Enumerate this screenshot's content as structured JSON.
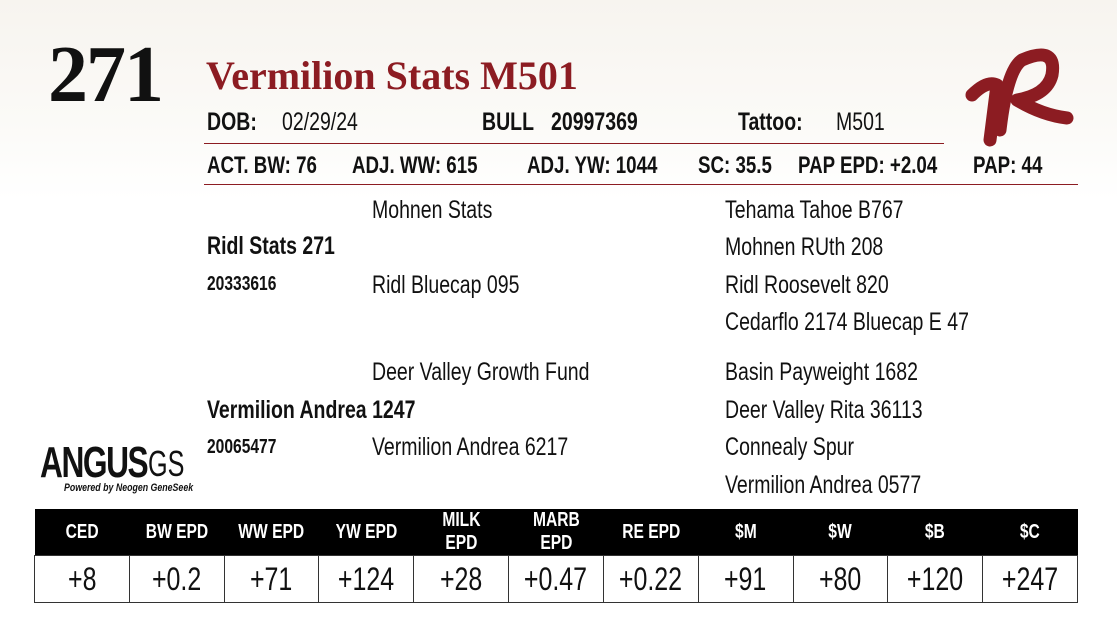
{
  "lot_number": "271",
  "animal_name": "Vermilion Stats M501",
  "info": {
    "dob_label": "DOB:",
    "dob": "02/29/24",
    "sex": "BULL",
    "reg": "20997369",
    "tattoo_label": "Tattoo:",
    "tattoo": "M501"
  },
  "stats": [
    "ACT. BW: 76",
    "ADJ. WW: 615",
    "ADJ. YW: 1044",
    "SC: 35.5",
    "PAP EPD: +2.04",
    "PAP: 44"
  ],
  "pedigree": {
    "sire": {
      "name": "Ridl Stats 271",
      "reg": "20333616",
      "sire": "Mohnen Stats",
      "dam": "Ridl Bluecap 095",
      "gp": [
        "Tehama Tahoe B767",
        "Mohnen RUth 208",
        "Ridl Roosevelt 820",
        "Cedarflo 2174 Bluecap E 47"
      ]
    },
    "dam": {
      "name": "Vermilion Andrea 1247",
      "reg": "20065477",
      "sire": "Deer Valley Growth Fund",
      "dam": "Vermilion Andrea 6217",
      "gp": [
        "Basin Payweight 1682",
        "Deer Valley Rita 36113",
        "Connealy Spur",
        "Vermilion Andrea 0577"
      ]
    }
  },
  "logo": {
    "brand": "ANGUS",
    "suffix": "GS",
    "tagline": "Powered by Neogen GeneSeek"
  },
  "ranch_logo": "VR",
  "epds": {
    "headers": [
      "CED",
      "BW EPD",
      "WW EPD",
      "YW EPD",
      "MILK EPD",
      "MARB EPD",
      "RE EPD",
      "$M",
      "$W",
      "$B",
      "$C"
    ],
    "values": [
      "+8",
      "+0.2",
      "+71",
      "+124",
      "+28",
      "+0.47",
      "+0.22",
      "+91",
      "+80",
      "+120",
      "+247"
    ]
  },
  "colors": {
    "accent": "#8c1c22"
  }
}
